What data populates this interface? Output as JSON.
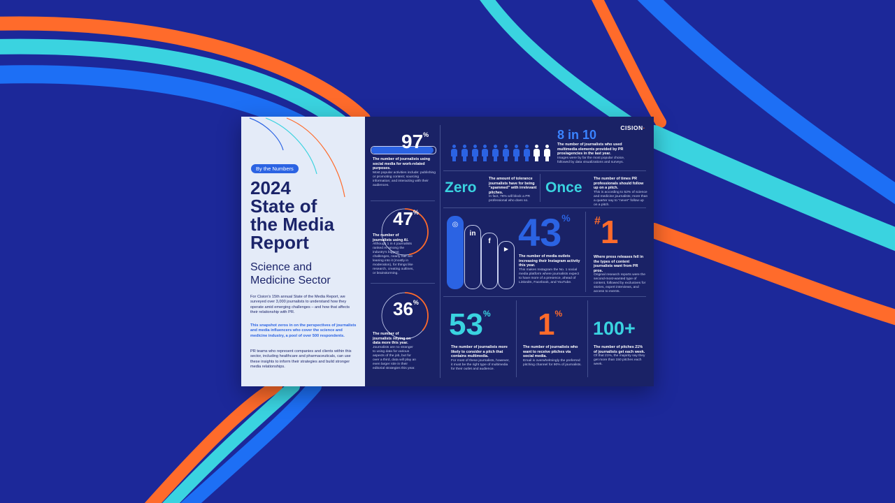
{
  "brand": {
    "logo": "CISION",
    "accent": "#ff7a2f",
    "blue": "#2b63e3",
    "cyan": "#3ad3e0",
    "navy": "#1a2266"
  },
  "cover": {
    "badge": "By the Numbers",
    "title_lines": [
      "2024",
      "State of",
      "the Media",
      "Report"
    ],
    "subtitle_lines": [
      "Science and",
      "Medicine Sector"
    ],
    "intro": "For Cision's 15th annual State of the Media Report, we surveyed over 3,000 journalists to understand how they operate amid emerging challenges – and how that affects their relationship with PR.",
    "highlight": "This snapshot zeros in on the perspectives of journalists and media influencers who cover the science and medicine industry, a pool of over 500 respondents.",
    "closing": "PR teams who represent companies and clients within this sector, including healthcare and pharmaceuticals, can use these insights to inform their strategies and build stronger media relationships."
  },
  "stats": {
    "social": {
      "value": "97",
      "unit": "%",
      "fill": 0.97,
      "headline": "The number of journalists using social media for work-related purposes.",
      "body": "Most popular activities include: publishing or promoting content; sourcing information; and interacting with their audiences."
    },
    "ai": {
      "value": "47",
      "unit": "%",
      "fill": 0.47,
      "headline": "The number of journalists using AI.",
      "body": "Although 1 in 4 journalists ranked AI among the industry's biggest challenges, nearly half are leaning into it (mostly in moderation), for things like research, creating outlines, or brainstorming."
    },
    "data": {
      "value": "36",
      "unit": "%",
      "fill": 0.36,
      "headline": "The number of journalists relying on data more this year.",
      "body": "Journalists are no stranger to using data for various aspects of the job, but for over a third, data will play an even larger role in their editorial strategies this year."
    },
    "multimedia": {
      "value": "8 in 10",
      "headline": "The number of journalists who used multimedia elements provided by PR pros/agencies in the last year.",
      "body": "Images were by far the most popular choice, followed by data visualizations and surveys.",
      "filled": 8,
      "total": 10
    },
    "zero": {
      "value": "Zero",
      "headline": "The amount of tolerance journalists have for being \"spammed\" with irrelevant pitches.",
      "body": "In fact, 76% will block a PR professional who does so."
    },
    "once": {
      "value": "Once",
      "headline": "The number of times PR professionals should follow up on a pitch.",
      "body": "This is according to 52% of science and medicine journalists; more than a quarter say to \"never\" follow up on a pitch."
    },
    "instagram": {
      "value": "43",
      "unit": "%",
      "headline": "The number of media outlets increasing their Instagram activity this year.",
      "body": "This makes Instagram the No. 1 social media platform where journalists expect to have more of a presence, ahead of LinkedIn, Facebook, and YouTube.",
      "platforms": [
        "instagram-icon",
        "linkedin-icon",
        "facebook-icon",
        "youtube-icon"
      ],
      "platform_letters": [
        "◎",
        "in",
        "f",
        "▶"
      ]
    },
    "press": {
      "prefix": "#",
      "value": "1",
      "headline": "Where press releases fell in the types of content journalists want from PR pros.",
      "body": "Original research reports were the second-most-wanted type of content, followed by exclusives for stories, expert interviews, and access to events."
    },
    "pitch_multimedia": {
      "value": "53",
      "unit": "%",
      "headline": "The number of journalists more likely to consider a pitch that contains multimedia.",
      "body": "For most of these journalists, however, it must be the right type of multimedia for their outlet and audience."
    },
    "social_pitch": {
      "value": "1",
      "unit": "%",
      "headline": "The number of journalists who want to receive pitches via social media.",
      "body": "Email is overwhelmingly the preferred pitching channel for 90% of journalists."
    },
    "pitch_count": {
      "value": "100+",
      "headline": "The number of pitches 21% of journalists get each week.",
      "body": "Of that 21%, the majority say they get more than 150 pitches each week."
    }
  }
}
